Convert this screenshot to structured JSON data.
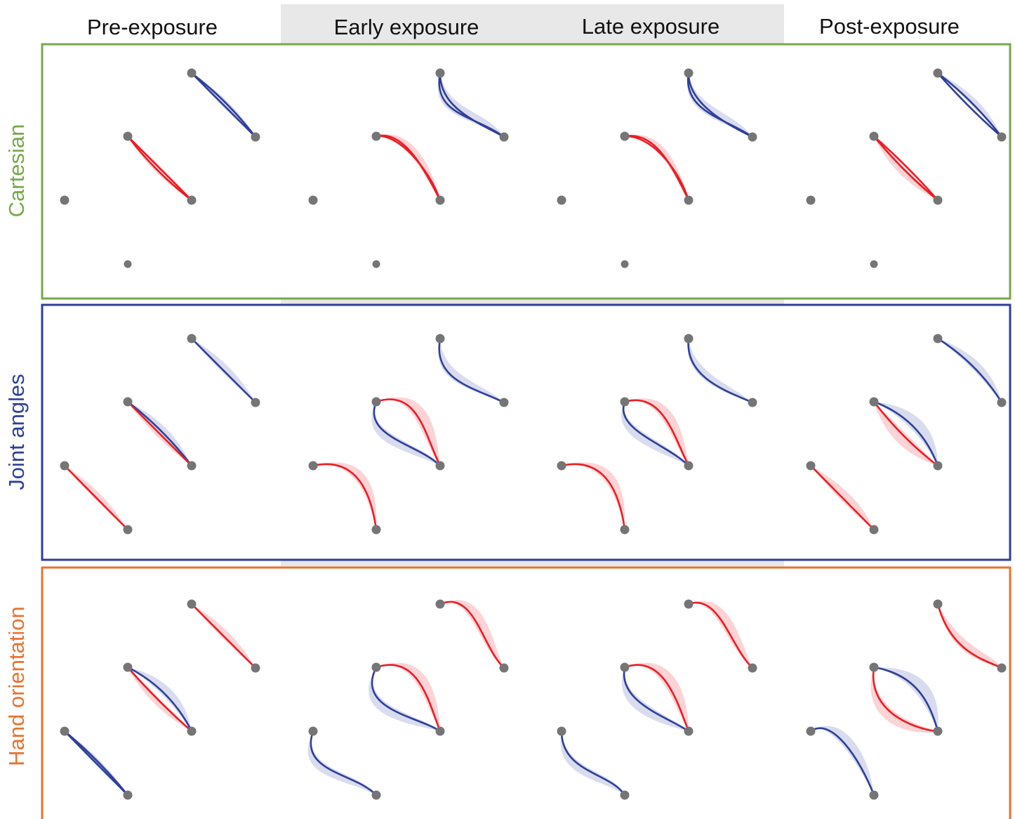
{
  "columns": [
    {
      "title": "Pre-exposure"
    },
    {
      "title": "Early exposure"
    },
    {
      "title": "Late exposure"
    },
    {
      "title": "Post-exposure"
    }
  ],
  "exposure_shading": {
    "columns": [
      1,
      2
    ],
    "color": "#e8e8e8"
  },
  "rows": [
    {
      "label": "Cartesian",
      "color": "#78a84a"
    },
    {
      "label": "Joint angles",
      "color": "#2e3f99"
    },
    {
      "label": "Hand orientation",
      "color": "#e8732f"
    }
  ],
  "colors": {
    "red": "#ed1c24",
    "blue": "#2e3f99",
    "target": "#757575"
  }
}
